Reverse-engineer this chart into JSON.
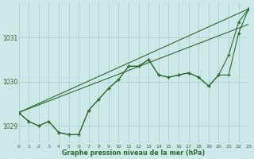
{
  "bg_color": "#cce8e8",
  "line_color": "#2d6b2d",
  "grid_color": "#aacccc",
  "xlabel": "Graphe pression niveau de la mer (hPa)",
  "xlim": [
    0,
    23
  ],
  "ylim": [
    1028.6,
    1031.8
  ],
  "yticks": [
    1029,
    1030,
    1031
  ],
  "xtick_labels": [
    "0",
    "1",
    "2",
    "3",
    "4",
    "5",
    "6",
    "7",
    "8",
    "9",
    "10",
    "11",
    "12",
    "13",
    "14",
    "15",
    "16",
    "17",
    "18",
    "19",
    "20",
    "21",
    "22",
    "23"
  ],
  "s1": [
    1029.3,
    1029.1,
    1029.0,
    1029.1,
    1028.85,
    1028.8,
    1028.8,
    1029.35,
    1029.6,
    1029.85,
    1030.05,
    1030.35,
    1030.35,
    1030.5,
    1030.15,
    1030.1,
    1030.15,
    1030.2,
    1030.1,
    1029.9,
    1030.15,
    1030.6,
    1031.35,
    1031.65
  ],
  "s2": [
    1029.3,
    1029.1,
    1029.0,
    1029.1,
    1028.85,
    1028.8,
    1028.8,
    1029.35,
    1029.6,
    1029.85,
    1030.05,
    1030.35,
    1030.35,
    1030.5,
    1030.15,
    1030.1,
    1030.15,
    1030.2,
    1030.1,
    1029.9,
    1030.15,
    1030.15,
    1031.1,
    1031.65
  ],
  "trend1_x": [
    0,
    23
  ],
  "trend1_y": [
    1029.3,
    1031.65
  ],
  "trend2_x": [
    0,
    23
  ],
  "trend2_y": [
    1029.3,
    1031.3
  ],
  "lw": 0.8,
  "ms": 3.0
}
